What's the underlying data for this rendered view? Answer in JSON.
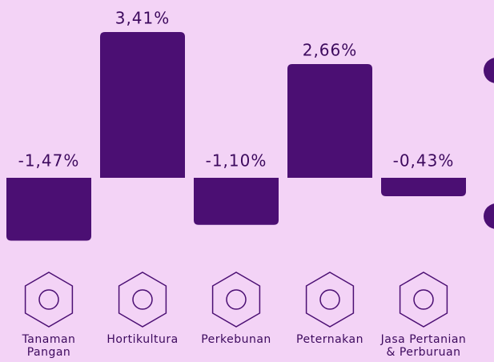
{
  "chart_data": {
    "type": "bar",
    "categories": [
      "Tanaman\nPangan",
      "Hortikultura",
      "Perkebunan",
      "Peternakan",
      "Jasa Pertanian\n& Perburuan"
    ],
    "values": [
      -1.47,
      3.41,
      -1.1,
      2.66,
      -0.43
    ],
    "value_labels": [
      "-1,47%",
      "3,41%",
      "-1,10%",
      "2,66%",
      "-0,43%"
    ],
    "color": "#4b0f73",
    "background": "#f3d3f6"
  }
}
